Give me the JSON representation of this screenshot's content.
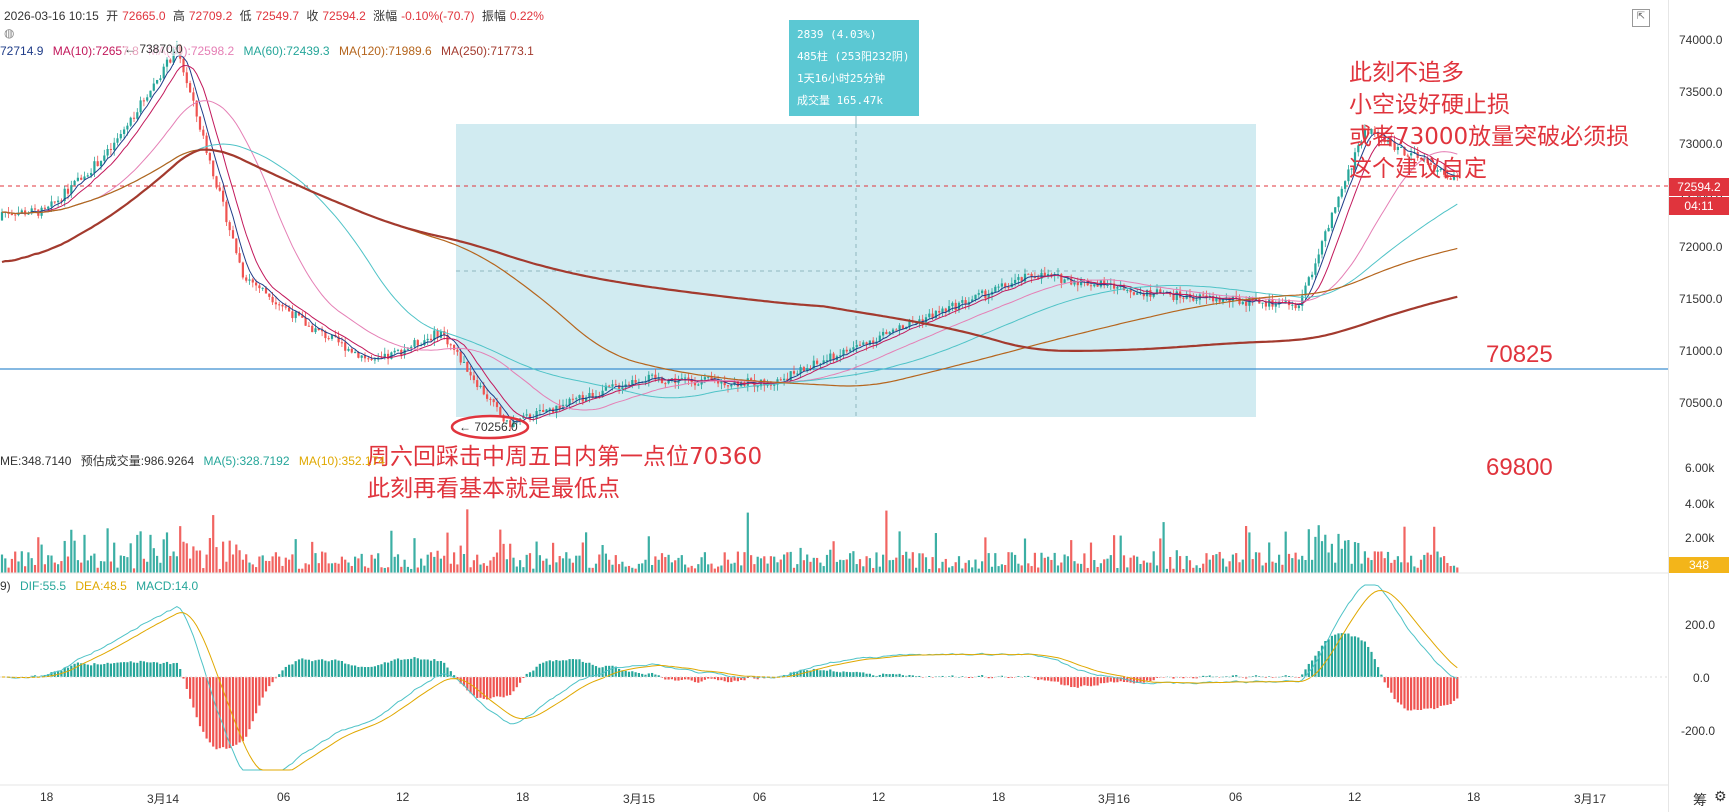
{
  "header": {
    "datetime": "2026-03-16 10:15",
    "open_label": "开",
    "open": "72665.0",
    "high_label": "高",
    "high": "72709.2",
    "low_label": "低",
    "low": "72549.7",
    "close_label": "收",
    "close": "72594.2",
    "change_label": "涨幅",
    "change": "-0.10%(-70.7)",
    "amplitude_label": "振幅",
    "amplitude": "0.22%"
  },
  "ma_row": {
    "ma5": "72714.9",
    "ma10": "MA(10):72657.8",
    "ma30": "MA(30):72598.2",
    "ma60": "MA(60):72439.3",
    "ma120": "MA(120):71989.6",
    "ma250": "MA(250):71773.1"
  },
  "volume_row": {
    "vol": "ME:348.7140",
    "est": "预估成交量:986.9264",
    "ma5": "MA(5):328.7192",
    "ma10": "MA(10):352.174"
  },
  "macd_row": {
    "prefix": "9)",
    "dif": "DIF:55.5",
    "dea": "DEA:48.5",
    "macd": "MACD:14.0"
  },
  "tooltip": {
    "line1": "2839 (4.03%)",
    "line2": "485柱 (253阳232阴)",
    "line3": "1天16小时25分钟",
    "line4": "成交量 165.47k"
  },
  "annotations": {
    "top_right": [
      "此刻不追多",
      "小空设好硬止损",
      "或者73000放量突破必须损",
      "这个建议自定"
    ],
    "bottom_left": [
      "周六回踩击中周五日内第一点位70360",
      "此刻再看基本就是最低点"
    ],
    "level_70825": "70825",
    "level_69800": "69800",
    "high_marker": "← 73870.0",
    "low_marker": "← 70256.0"
  },
  "price_axis": {
    "ticks": [
      "74000.0",
      "73500.0",
      "73000.0",
      "72500.0",
      "72000.0",
      "71500.0",
      "71000.0",
      "70500.0"
    ],
    "current_price": "72594.2",
    "countdown": "04:11"
  },
  "volume_axis": {
    "ticks": [
      "6.00k",
      "4.00k",
      "2.00k"
    ],
    "current": "348"
  },
  "macd_axis": {
    "ticks": [
      "200.0",
      "0.0",
      "-200.0"
    ]
  },
  "time_axis": {
    "labels": [
      "18",
      "3月14",
      "06",
      "12",
      "18",
      "3月15",
      "06",
      "12",
      "18",
      "3月16",
      "06",
      "12",
      "18",
      "3月17"
    ]
  },
  "bottom_right_label": "筹",
  "colors": {
    "up": "#26a69a",
    "down": "#ef5350",
    "ma5": "#1f3c88",
    "ma10": "#c2185b",
    "ma30": "#e57fb5",
    "ma60": "#4fc3c7",
    "ma120": "#b5651d",
    "ma250": "#a33a2e",
    "annotation": "#e0343d",
    "range_box": "#c9e8ee"
  },
  "chart_data": {
    "type": "candlestick",
    "timeframe_note": "BTC-like perpetual, ~15m candles, 2026-03-13 to 2026-03-16",
    "x_labels": [
      "18",
      "3月14",
      "06",
      "12",
      "18",
      "3月15",
      "06",
      "12",
      "18",
      "3月16",
      "06",
      "12"
    ],
    "approx_close_path": [
      {
        "x": "3月13 18:00",
        "close": 72300
      },
      {
        "x": "3月13 21:00",
        "close": 72900
      },
      {
        "x": "3月14 00:00",
        "close": 73870
      },
      {
        "x": "3月14 03:00",
        "close": 71700
      },
      {
        "x": "3月14 06:00",
        "close": 71200
      },
      {
        "x": "3月14 09:00",
        "close": 70850
      },
      {
        "x": "3月14 12:00",
        "close": 71150
      },
      {
        "x": "3月14 15:00",
        "close": 70256
      },
      {
        "x": "3月14 21:00",
        "close": 70700
      },
      {
        "x": "3月15 03:00",
        "close": 70650
      },
      {
        "x": "3月15 09:00",
        "close": 71200
      },
      {
        "x": "3月15 15:00",
        "close": 71700
      },
      {
        "x": "3月15 21:00",
        "close": 71500
      },
      {
        "x": "3月16 03:00",
        "close": 71400
      },
      {
        "x": "3月16 06:00",
        "close": 73100
      },
      {
        "x": "3月16 10:15",
        "close": 72594.2
      }
    ],
    "horizontal_lines": [
      70825
    ],
    "ylim": [
      70300,
      74100
    ]
  }
}
